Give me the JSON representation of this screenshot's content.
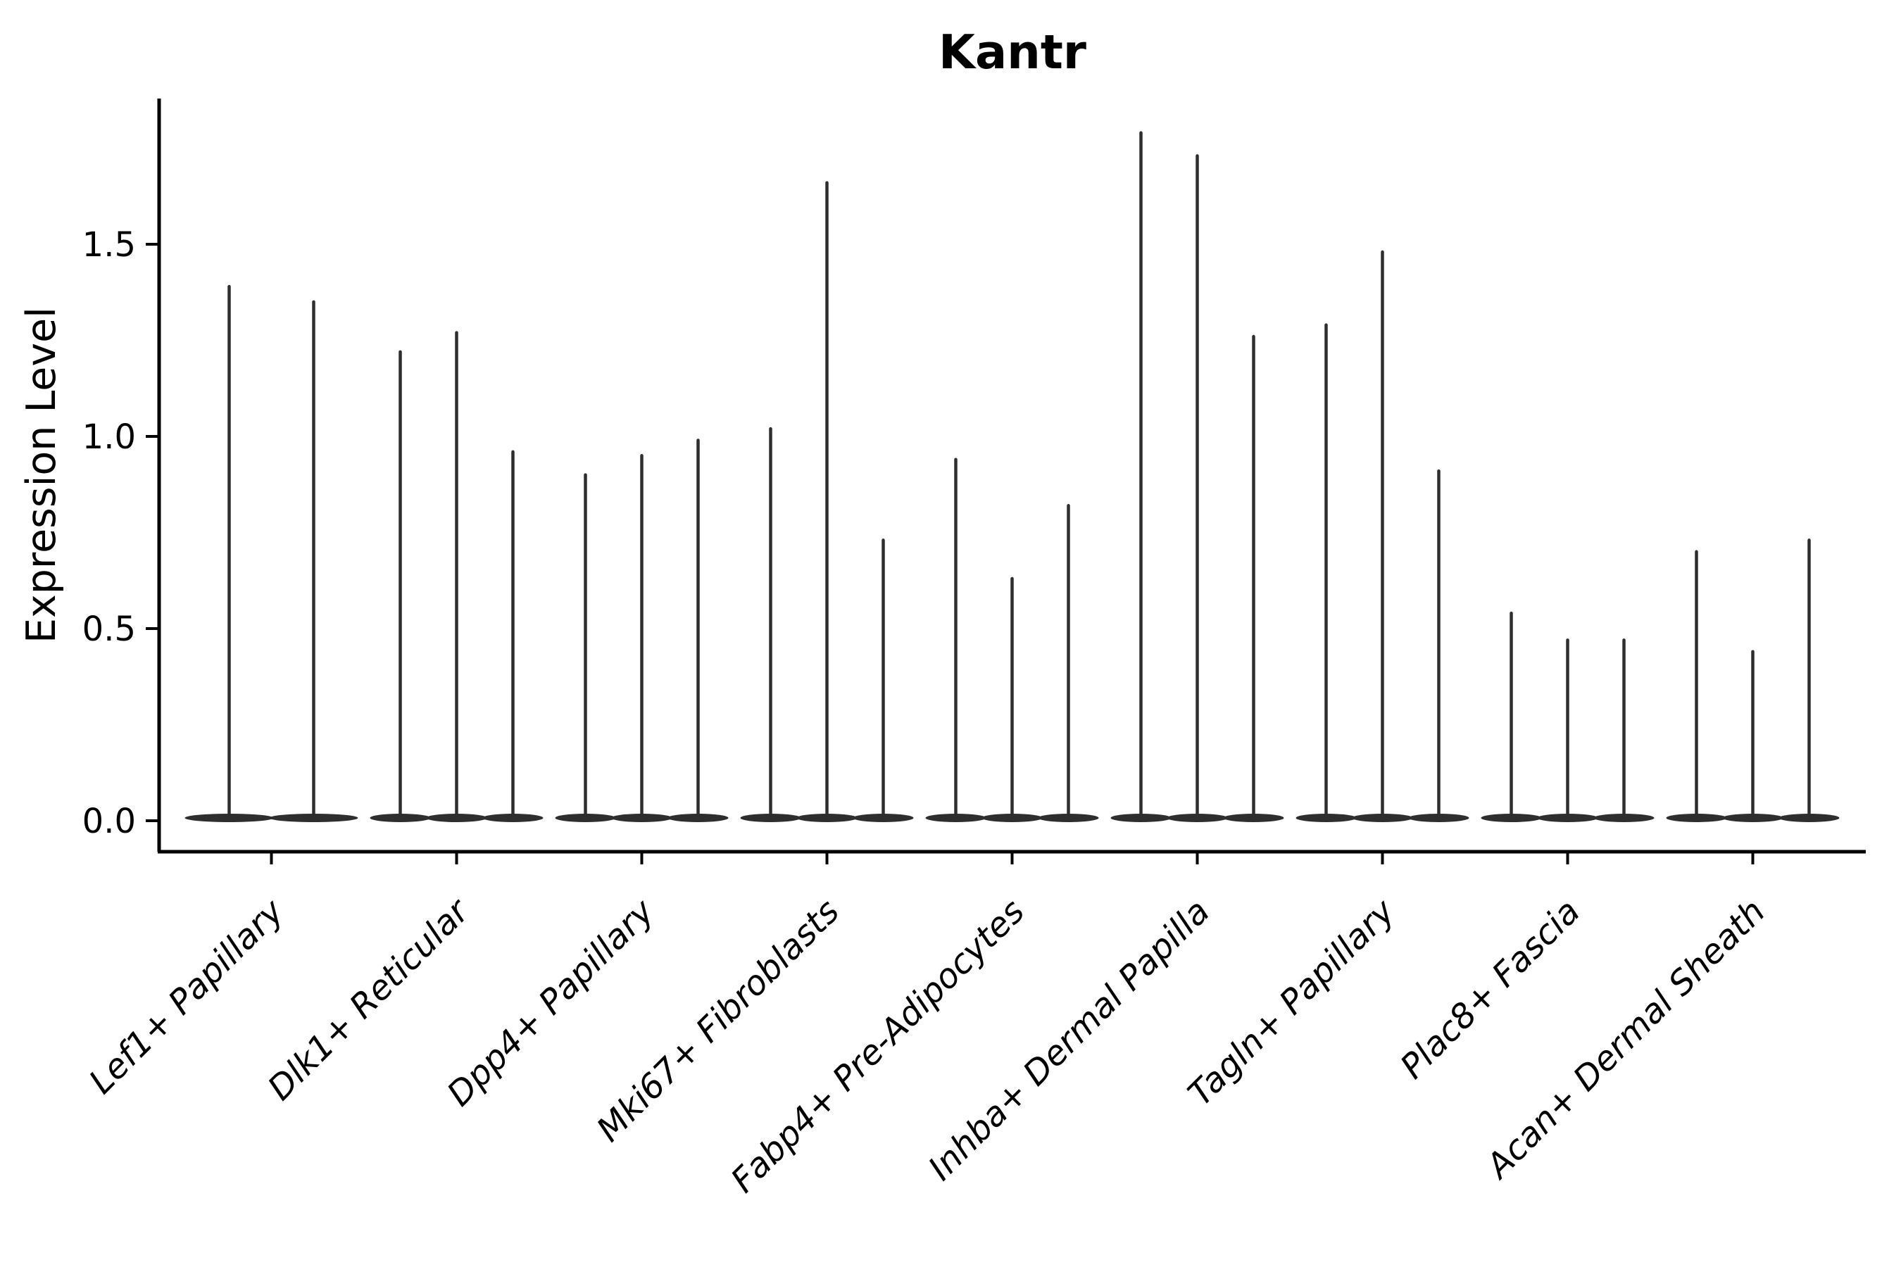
{
  "figure": {
    "title": "Kantr",
    "ylabel": "Expression Level"
  },
  "colors": {
    "violin": "#2e2e2e",
    "axis": "#000000",
    "text": "#000000",
    "background": "#ffffff"
  },
  "chart_data": {
    "type": "violin",
    "title": "Kantr",
    "xlabel": "",
    "ylabel": "Expression Level",
    "ylim": [
      0,
      1.96
    ],
    "yticks": [
      {
        "value": 0.0,
        "label": "0.0"
      },
      {
        "value": 0.5,
        "label": "0.5"
      },
      {
        "value": 1.0,
        "label": "1.0"
      },
      {
        "value": 1.5,
        "label": "1.5"
      }
    ],
    "grid": false,
    "legend_position": "none",
    "categories": [
      "Lef1+ Papillary",
      "Dlk1+ Reticular",
      "Dpp4+ Papillary",
      "Mki67+ Fibroblasts",
      "Fabp4+ Pre-Adipocytes",
      "Inhba+ Dermal Papilla",
      "Tagln+ Papillary",
      "Plac8+ Fascia",
      "Acan+ Dermal Sheath"
    ],
    "groups": [
      {
        "category": "Lef1+ Papillary",
        "violin_max_values": [
          1.39,
          1.35
        ]
      },
      {
        "category": "Dlk1+ Reticular",
        "violin_max_values": [
          1.22,
          1.27,
          0.96
        ]
      },
      {
        "category": "Dpp4+ Papillary",
        "violin_max_values": [
          0.9,
          0.95,
          0.99
        ]
      },
      {
        "category": "Mki67+ Fibroblasts",
        "violin_max_values": [
          1.02,
          1.66,
          0.73
        ]
      },
      {
        "category": "Fabp4+ Pre-Adipocytes",
        "violin_max_values": [
          0.94,
          0.63,
          0.82
        ]
      },
      {
        "category": "Inhba+ Dermal Papilla",
        "violin_max_values": [
          1.79,
          1.73,
          1.26
        ]
      },
      {
        "category": "Tagln+ Papillary",
        "violin_max_values": [
          1.29,
          1.48,
          0.91
        ]
      },
      {
        "category": "Plac8+ Fascia",
        "violin_max_values": [
          0.54,
          0.47,
          0.47
        ]
      },
      {
        "category": "Acan+ Dermal Sheath",
        "violin_max_values": [
          0.7,
          0.44,
          0.73
        ]
      }
    ],
    "violin_baseline_value": 0.0
  }
}
